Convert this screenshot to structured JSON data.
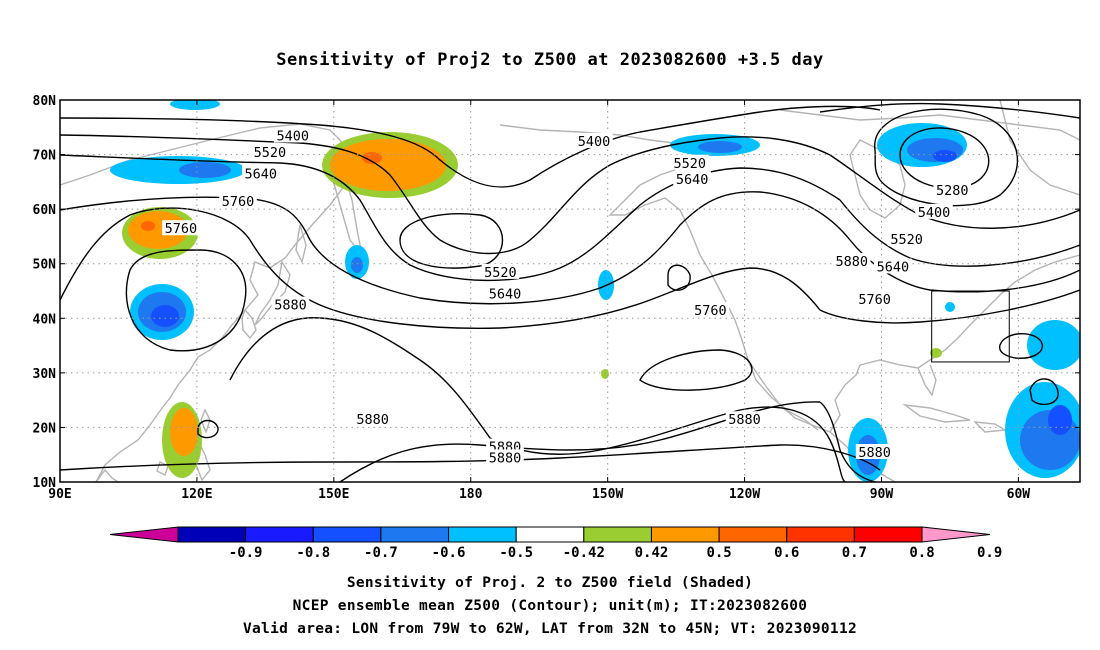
{
  "title": "Sensitivity of Proj2 to Z500 at 2023082600 +3.5 day",
  "map": {
    "lat_labels": [
      "80N",
      "70N",
      "60N",
      "50N",
      "40N",
      "30N",
      "20N",
      "10N"
    ],
    "lon_labels": [
      "90E",
      "120E",
      "150E",
      "180",
      "150W",
      "120W",
      "90W",
      "60W"
    ],
    "extent": {
      "lon_min": 90,
      "lon_max": 313.5,
      "lat_min": 10,
      "lat_max": 80
    },
    "grid": "dotted",
    "valid_area": {
      "lon": [
        281,
        298
      ],
      "lat": [
        32,
        45
      ]
    },
    "contour_labels": [
      {
        "text": "5400",
        "lon": 141,
        "lat": 73.5
      },
      {
        "text": "5520",
        "lon": 136,
        "lat": 70.5
      },
      {
        "text": "5640",
        "lon": 134,
        "lat": 66.5
      },
      {
        "text": "5760",
        "lon": 129,
        "lat": 61.5
      },
      {
        "text": "5760",
        "lon": 116.5,
        "lat": 56.5
      },
      {
        "text": "5880",
        "lon": 140.5,
        "lat": 42.5
      },
      {
        "text": "5400",
        "lon": 207,
        "lat": 72.5
      },
      {
        "text": "5520",
        "lon": 228,
        "lat": 68.5
      },
      {
        "text": "5640",
        "lon": 228.5,
        "lat": 65.5
      },
      {
        "text": "5520",
        "lon": 186.5,
        "lat": 48.5
      },
      {
        "text": "5640",
        "lon": 187.5,
        "lat": 44.5
      },
      {
        "text": "5760",
        "lon": 232.5,
        "lat": 41.5
      },
      {
        "text": "5880",
        "lon": 263.5,
        "lat": 50.5
      },
      {
        "text": "5280",
        "lon": 285.5,
        "lat": 63.5
      },
      {
        "text": "5400",
        "lon": 281.5,
        "lat": 59.5
      },
      {
        "text": "5520",
        "lon": 275.5,
        "lat": 54.5
      },
      {
        "text": "5640",
        "lon": 272.5,
        "lat": 49.5
      },
      {
        "text": "5760",
        "lon": 268.5,
        "lat": 43.5
      },
      {
        "text": "5880",
        "lon": 158.5,
        "lat": 21.5
      },
      {
        "text": "5880",
        "lon": 240,
        "lat": 21.5
      },
      {
        "text": "5880",
        "lon": 187.5,
        "lat": 16.5
      },
      {
        "text": "5880",
        "lon": 187.5,
        "lat": 14.5
      },
      {
        "text": "5880",
        "lon": 268.5,
        "lat": 15.5
      }
    ]
  },
  "colorbar": {
    "labels": [
      "-0.9",
      "-0.8",
      "-0.7",
      "-0.6",
      "-0.5",
      "-0.42",
      "0.42",
      "0.5",
      "0.6",
      "0.7",
      "0.8",
      "0.9"
    ],
    "colors": [
      "#0000b8",
      "#1a1aff",
      "#1450ff",
      "#1e78f0",
      "#00c0ff",
      "#ffffff",
      "#9acd32",
      "#ff9900",
      "#ff6600",
      "#ff3300",
      "#ff0000"
    ],
    "low_end_color": "#cc0099",
    "high_end_color": "#ff99cc"
  },
  "captions": {
    "line1": "Sensitivity of Proj. 2 to Z500 field (Shaded)",
    "line2": "NCEP ensemble mean Z500 (Contour); unit(m); IT:2023082600",
    "line3": "Valid area: LON from 79W to 62W, LAT from 32N to 45N; VT: 2023090112"
  }
}
